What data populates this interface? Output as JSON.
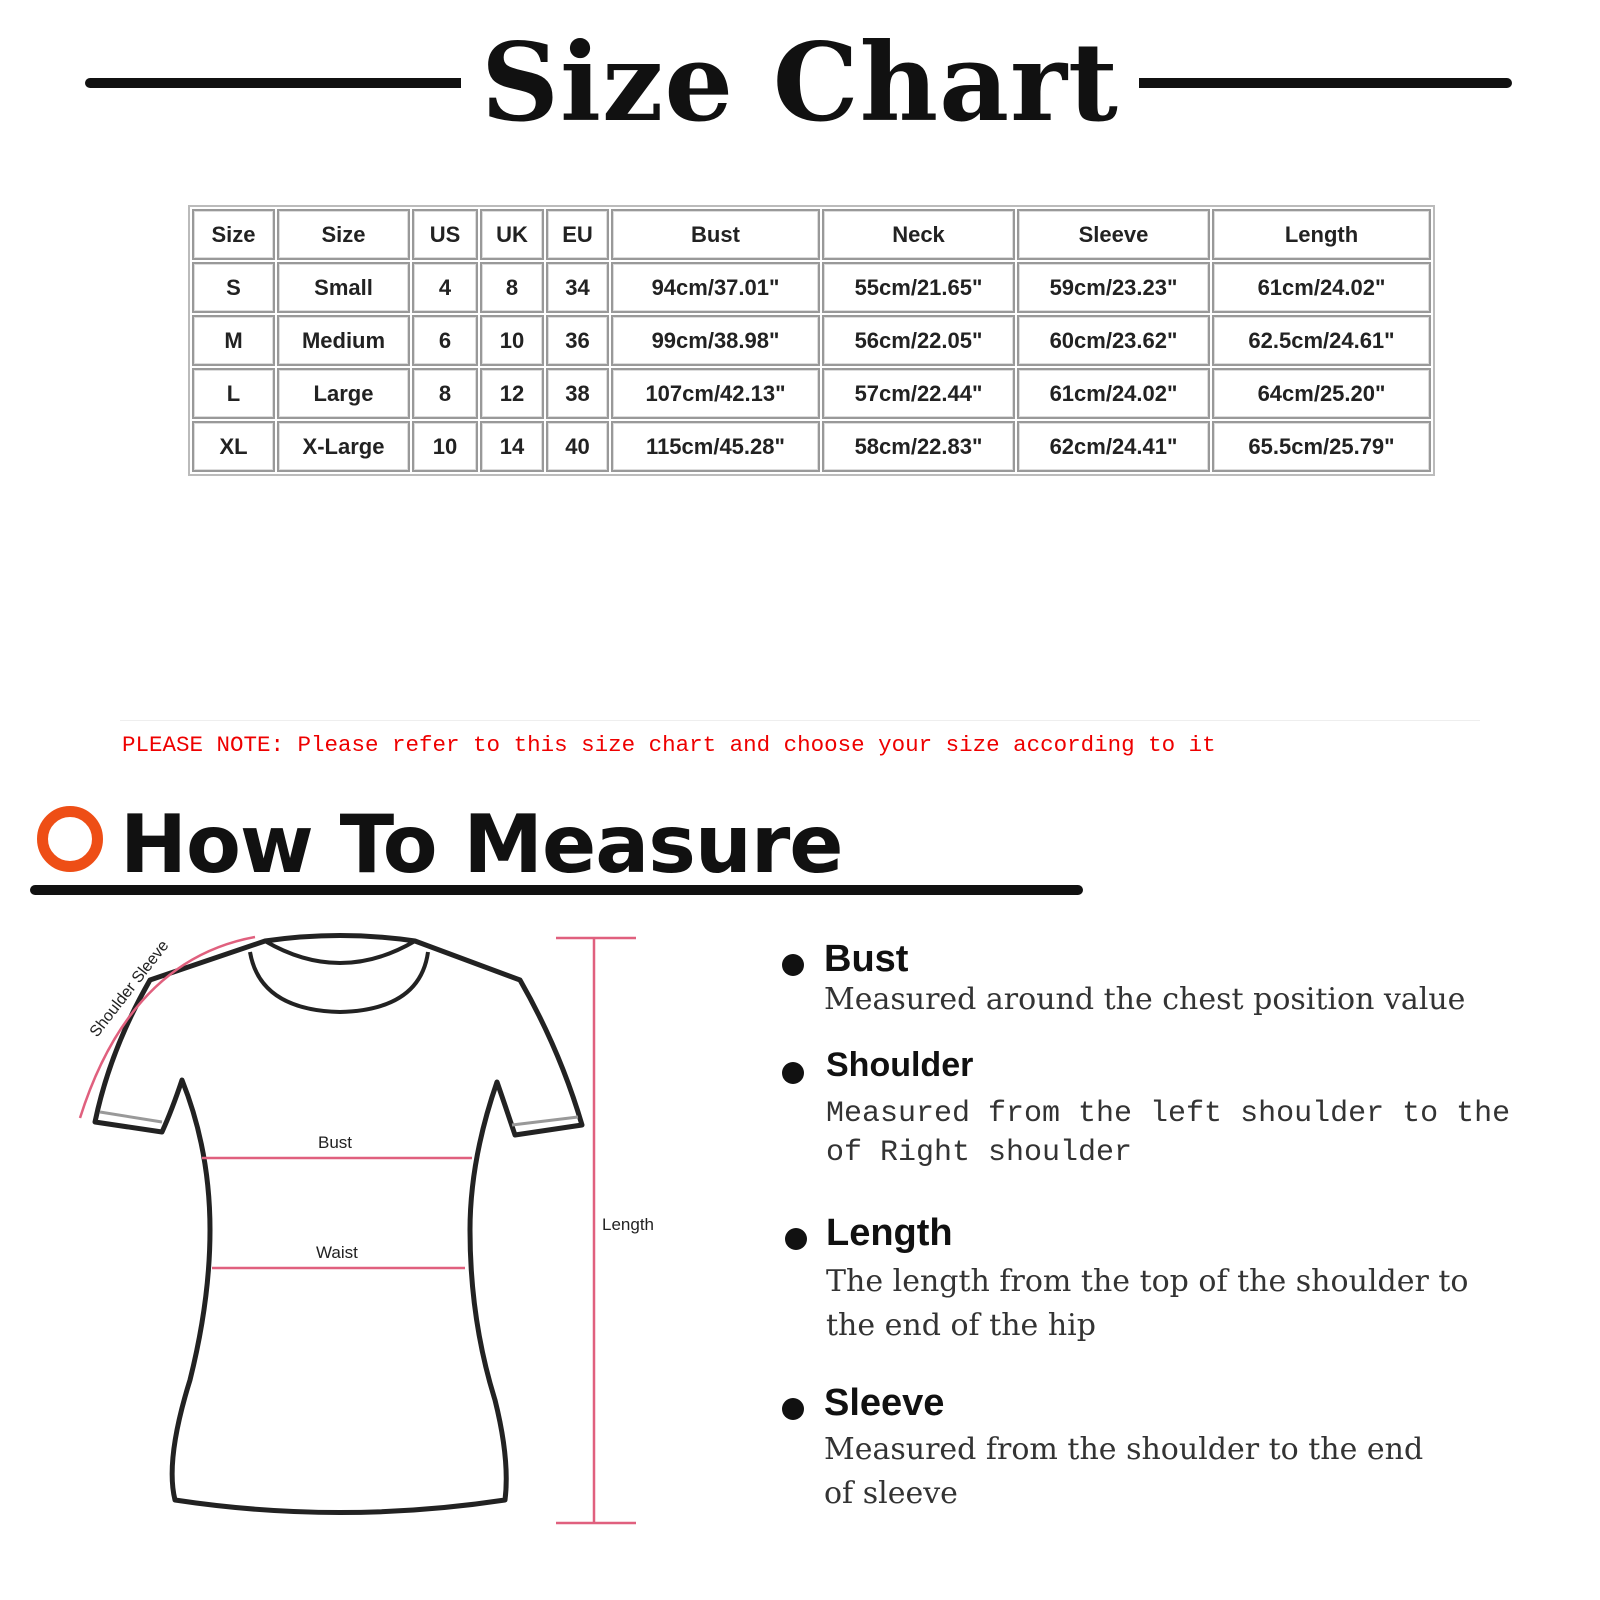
{
  "title": "Size Chart",
  "table": {
    "headers": [
      "Size",
      "Size",
      "US",
      "UK",
      "EU",
      "Bust",
      "Neck",
      "Sleeve",
      "Length"
    ],
    "rows": [
      [
        "S",
        "Small",
        "4",
        "8",
        "34",
        "94cm/37.01\"",
        "55cm/21.65\"",
        "59cm/23.23\"",
        "61cm/24.02\""
      ],
      [
        "M",
        "Medium",
        "6",
        "10",
        "36",
        "99cm/38.98\"",
        "56cm/22.05\"",
        "60cm/23.62\"",
        "62.5cm/24.61\""
      ],
      [
        "L",
        "Large",
        "8",
        "12",
        "38",
        "107cm/42.13\"",
        "57cm/22.44\"",
        "61cm/24.02\"",
        "64cm/25.20\""
      ],
      [
        "XL",
        "X-Large",
        "10",
        "14",
        "40",
        "115cm/45.28\"",
        "58cm/22.83\"",
        "62cm/24.41\"",
        "65.5cm/25.79\""
      ]
    ]
  },
  "note": "PLEASE NOTE: Please refer to this size chart and choose your size according to it",
  "how_to_measure": {
    "title": "How To Measure",
    "diagram_labels": {
      "shoulder_sleeve": "Shoulder Sleeve",
      "bust": "Bust",
      "waist": "Waist",
      "length": "Length"
    },
    "items": [
      {
        "heading": "Bust",
        "lines": [
          "Measured around the chest position value"
        ]
      },
      {
        "heading": "Shoulder",
        "lines": [
          "Measured from the left shoulder to the",
          "of Right shoulder"
        ]
      },
      {
        "heading": "Length",
        "lines": [
          "The length from the top of the shoulder to",
          "the end of the hip"
        ]
      },
      {
        "heading": "Sleeve",
        "lines": [
          "Measured from the shoulder to the end",
          "of sleeve"
        ]
      }
    ]
  },
  "colors": {
    "accent": "#ee4e16",
    "note": "#ee0000",
    "measure_line": "#e0607e"
  }
}
